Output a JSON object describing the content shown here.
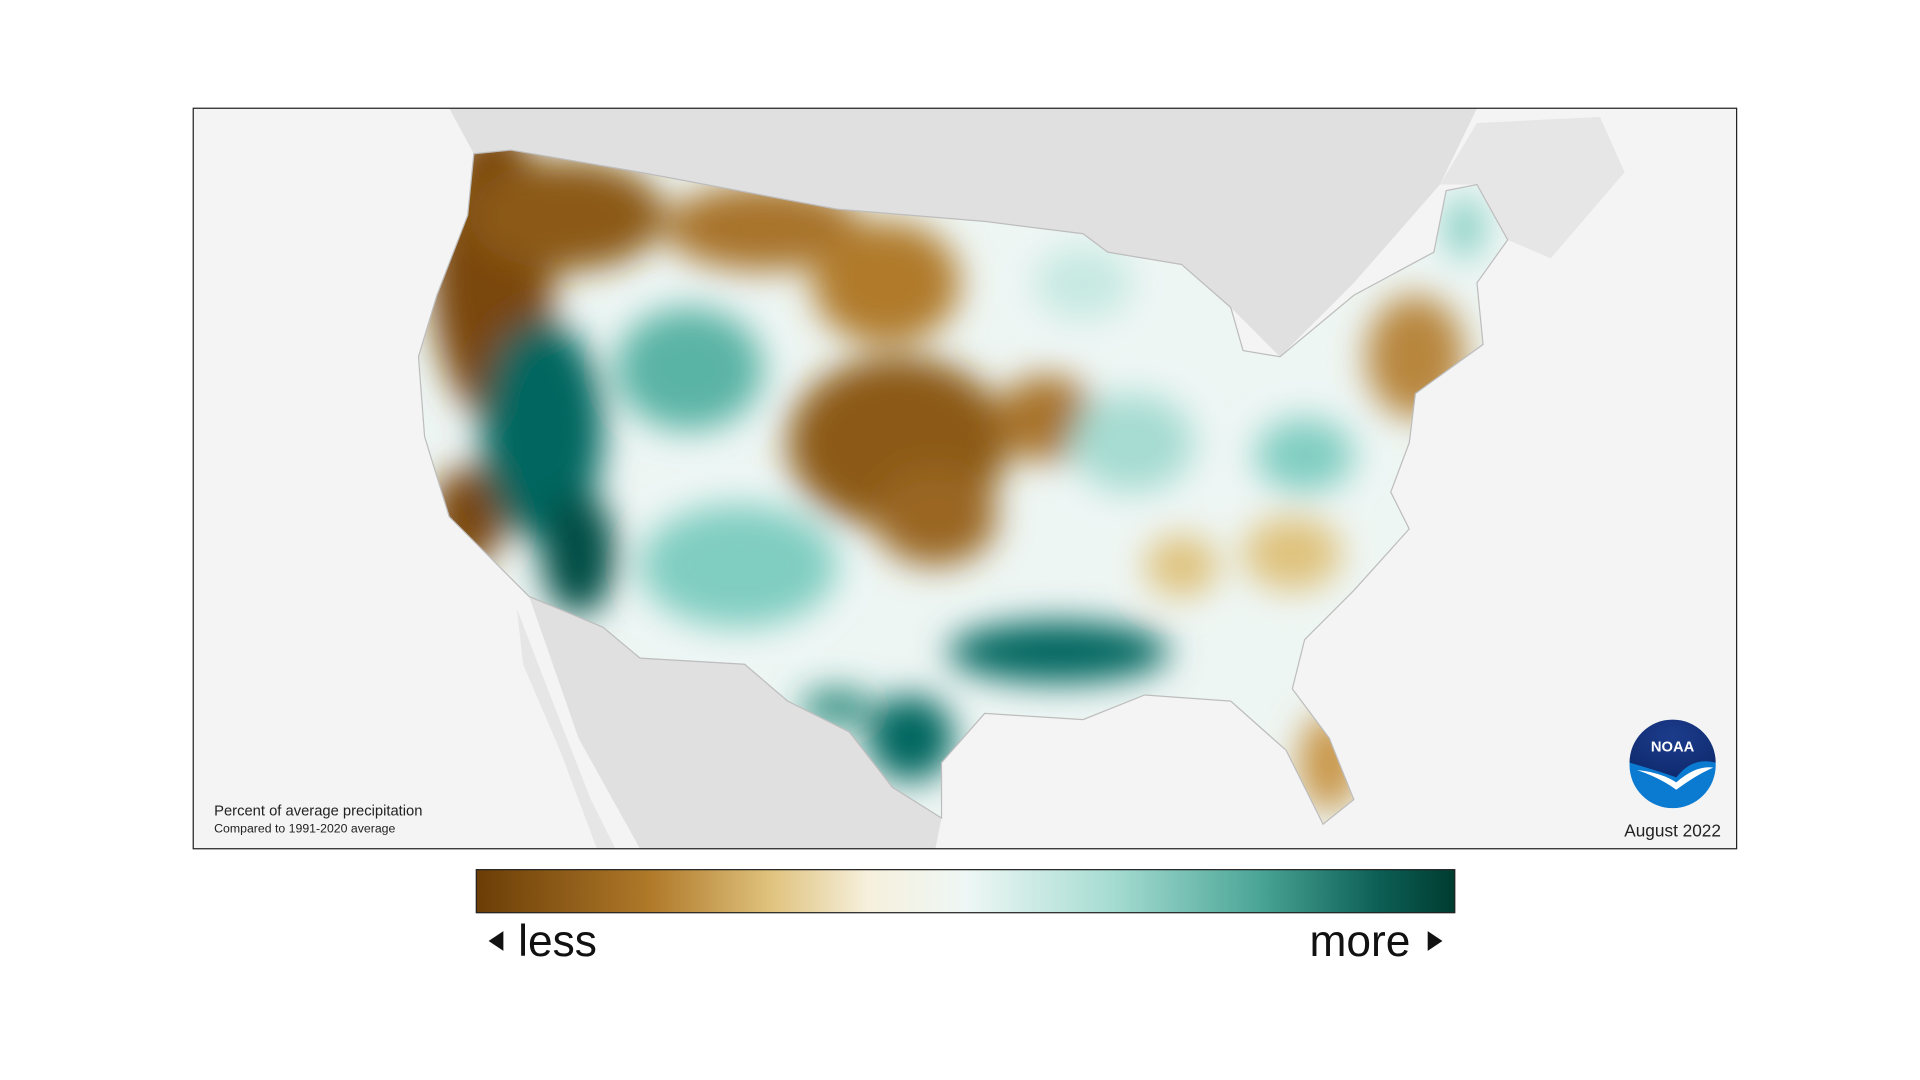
{
  "map": {
    "legend_title": "Percent of average precipitation",
    "legend_subtitle": "Compared to 1991-2020 average",
    "date": "August 2022",
    "logo": "NOAA"
  },
  "colorbar": {
    "low_label": "less",
    "high_label": "more"
  }
}
